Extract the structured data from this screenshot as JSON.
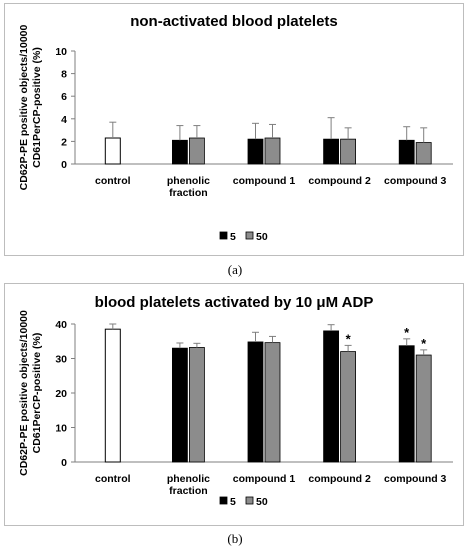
{
  "chart_data": [
    {
      "type": "bar",
      "title": "non-activated blood platelets",
      "ylabel_lines": [
        "CD62P-PE positive objects/10000",
        "CD61PerCP-positive (%)"
      ],
      "xlabel": "",
      "ylim": [
        0,
        10
      ],
      "yticks": [
        0,
        2,
        4,
        6,
        8,
        10
      ],
      "categories": [
        [
          "control"
        ],
        [
          "phenolic",
          "fraction"
        ],
        [
          "compound 1"
        ],
        [
          "compound 2"
        ],
        [
          "compound 3"
        ]
      ],
      "control": {
        "value": 2.3,
        "error": 1.4,
        "color": "#ffffff"
      },
      "series": [
        {
          "name": "5",
          "color": "#000000",
          "values": [
            null,
            2.1,
            2.2,
            2.2,
            2.1
          ],
          "errors": [
            null,
            1.3,
            1.4,
            1.9,
            1.2
          ],
          "significant": [
            false,
            false,
            false,
            false,
            false
          ]
        },
        {
          "name": "50",
          "color": "#8c8c8c",
          "values": [
            null,
            2.3,
            2.3,
            2.2,
            1.9
          ],
          "errors": [
            null,
            1.1,
            1.2,
            1.0,
            1.3
          ],
          "significant": [
            false,
            false,
            false,
            false,
            false
          ]
        }
      ],
      "legend_position": "bottom-right",
      "grid": false
    },
    {
      "type": "bar",
      "title": "blood platelets activated by 10 μM ADP",
      "ylabel_lines": [
        "CD62P-PE positive objects/10000",
        "CD61PerCP-positive (%)"
      ],
      "xlabel": "",
      "ylim": [
        0,
        40
      ],
      "yticks": [
        0,
        10,
        20,
        30,
        40
      ],
      "categories": [
        [
          "control"
        ],
        [
          "phenolic",
          "fraction"
        ],
        [
          "compound 1"
        ],
        [
          "compound 2"
        ],
        [
          "compound 3"
        ]
      ],
      "control": {
        "value": 38.5,
        "error": 1.5,
        "color": "#ffffff"
      },
      "series": [
        {
          "name": "5",
          "color": "#000000",
          "values": [
            null,
            33.0,
            34.8,
            38.0,
            33.7
          ],
          "errors": [
            null,
            1.5,
            2.8,
            1.8,
            2.0
          ],
          "significant": [
            false,
            false,
            false,
            false,
            true
          ]
        },
        {
          "name": "50",
          "color": "#8c8c8c",
          "values": [
            null,
            33.2,
            34.6,
            32.0,
            31.0
          ],
          "errors": [
            null,
            1.2,
            1.8,
            1.8,
            1.5
          ],
          "significant": [
            false,
            false,
            false,
            true,
            true
          ]
        }
      ],
      "legend_position": "bottom-right",
      "grid": false,
      "significance_marker": "*"
    }
  ],
  "captions": [
    "(a)",
    "(b)"
  ]
}
